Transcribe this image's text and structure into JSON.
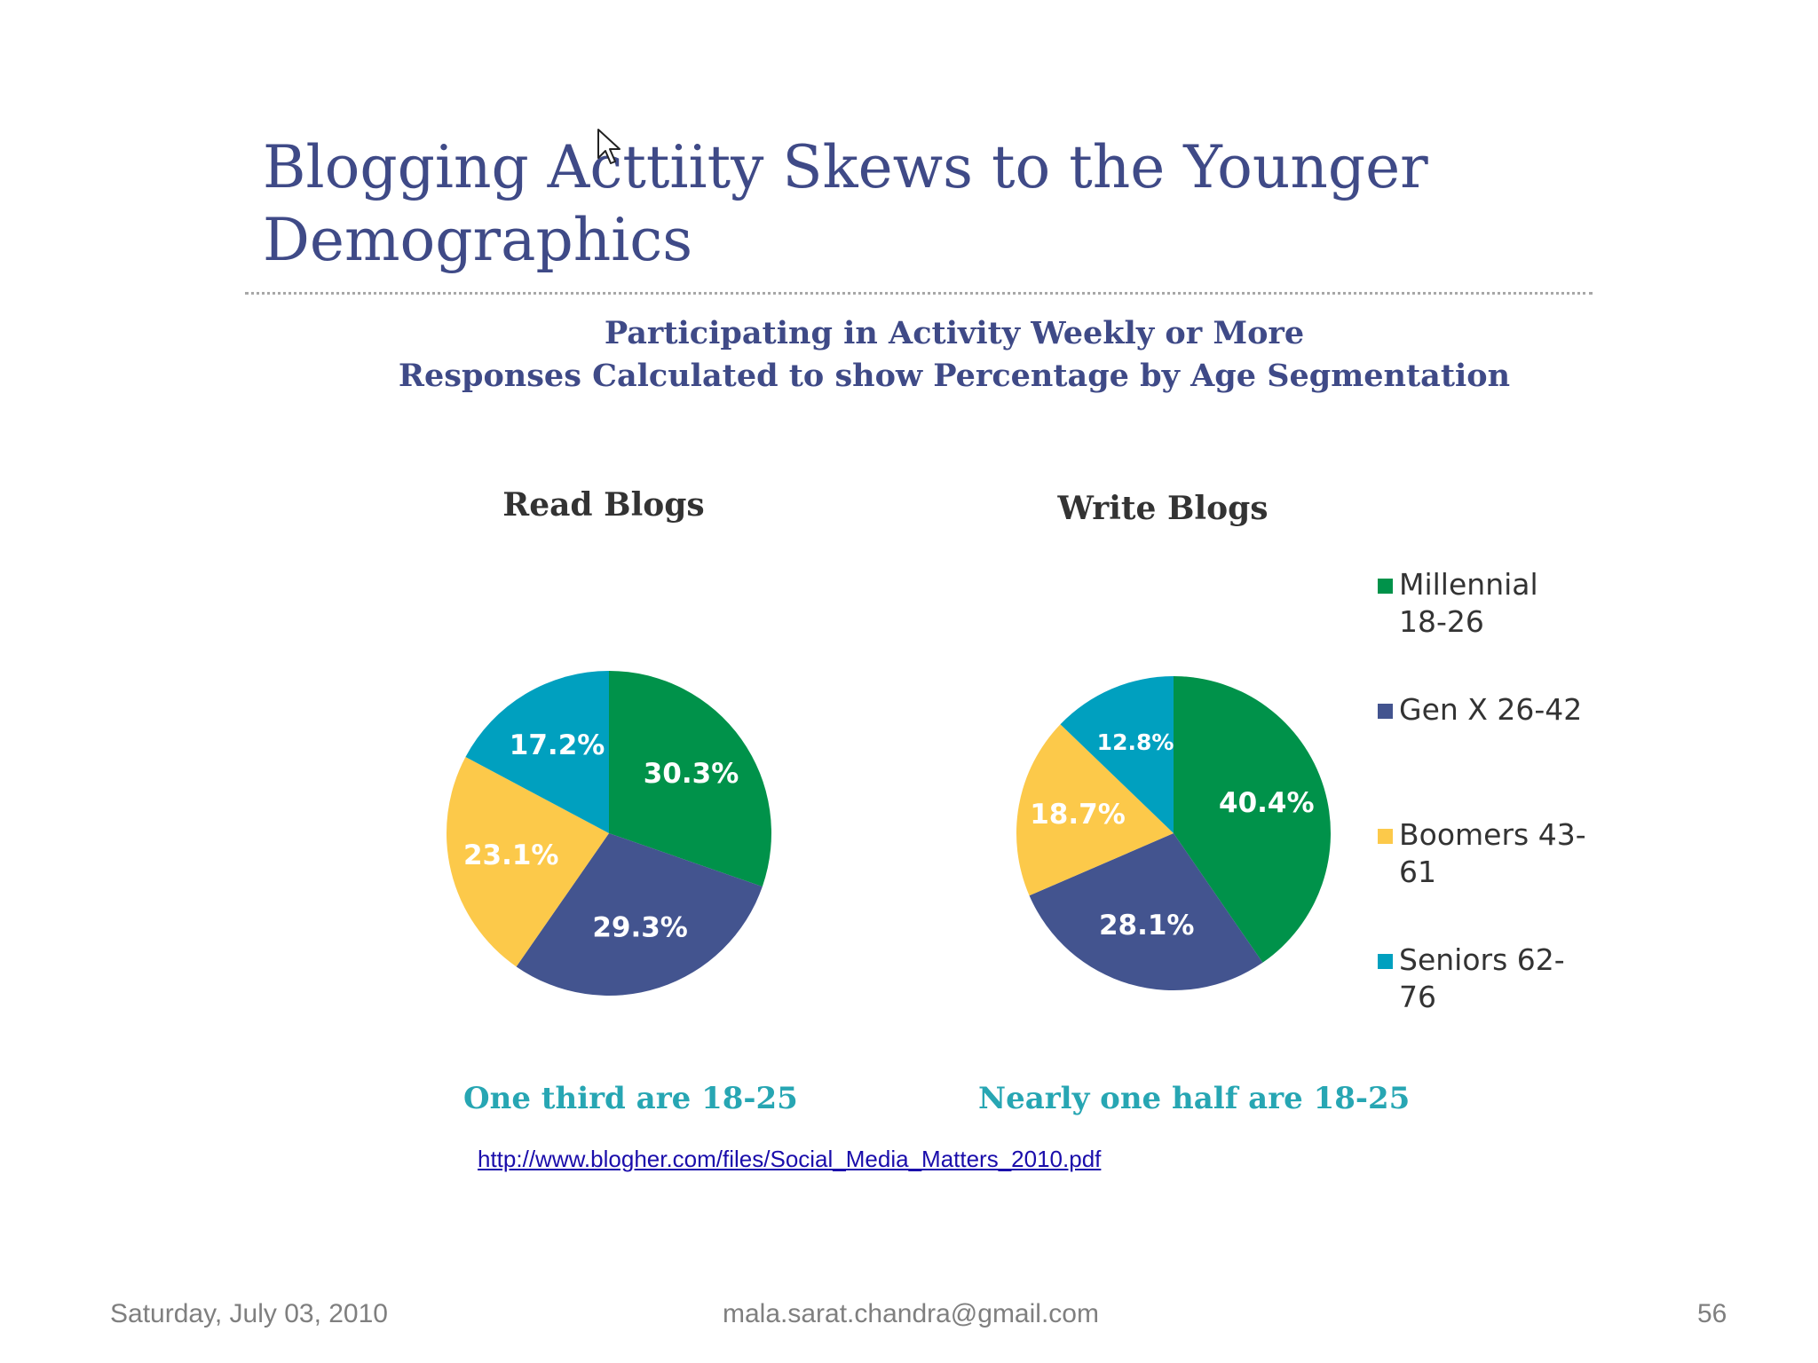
{
  "slide": {
    "title_line1": "Blogging Acttiity Skews to the Younger",
    "title_line2": "Demographics",
    "subtitle_line1": "Participating in Activity Weekly or More",
    "subtitle_line2": "Responses Calculated to show Percentage by Age Segmentation",
    "source_link": "http://www.blogher.com/files/Social_Media_Matters_2010.pdf"
  },
  "footer": {
    "date": "Saturday, July 03, 2010",
    "email": "mala.sarat.chandra@gmail.com",
    "page_number": "56"
  },
  "colors": {
    "title": "#3f4a87",
    "caption": "#27a6b3",
    "millennial": "#00924a",
    "gen_x": "#43548f",
    "boomers": "#fcc94a",
    "seniors": "#00a0bf"
  },
  "icons": {
    "cursor": "mouse-pointer-arrow"
  },
  "chart_data": [
    {
      "type": "pie",
      "title": "Read Blogs",
      "caption": "One third are 18-25",
      "categories": [
        "Millennial 18-26",
        "Gen X 26-42",
        "Boomers 43-61",
        "Seniors 62-76"
      ],
      "values": [
        30.3,
        29.3,
        23.1,
        17.2
      ],
      "labels": [
        "30.3%",
        "29.3%",
        "23.1%",
        "17.2%"
      ],
      "colors": [
        "#00924a",
        "#43548f",
        "#fcc94a",
        "#00a0bf"
      ],
      "legend_position": "right"
    },
    {
      "type": "pie",
      "title": "Write Blogs",
      "caption": "Nearly one half are 18-25",
      "categories": [
        "Millennial 18-26",
        "Gen X 26-42",
        "Boomers 43-61",
        "Seniors 62-76"
      ],
      "values": [
        40.4,
        28.1,
        18.7,
        12.8
      ],
      "labels": [
        "40.4%",
        "28.1%",
        "18.7%",
        "12.8%"
      ],
      "colors": [
        "#00924a",
        "#43548f",
        "#fcc94a",
        "#00a0bf"
      ],
      "legend_position": "right"
    }
  ],
  "legend": {
    "items": [
      {
        "label": "Millennial 18-26",
        "color": "#00924a"
      },
      {
        "label": "Gen X 26-42",
        "color": "#43548f"
      },
      {
        "label": "Boomers 43-61",
        "color": "#fcc94a"
      },
      {
        "label": "Seniors 62-76",
        "color": "#00a0bf"
      }
    ]
  }
}
